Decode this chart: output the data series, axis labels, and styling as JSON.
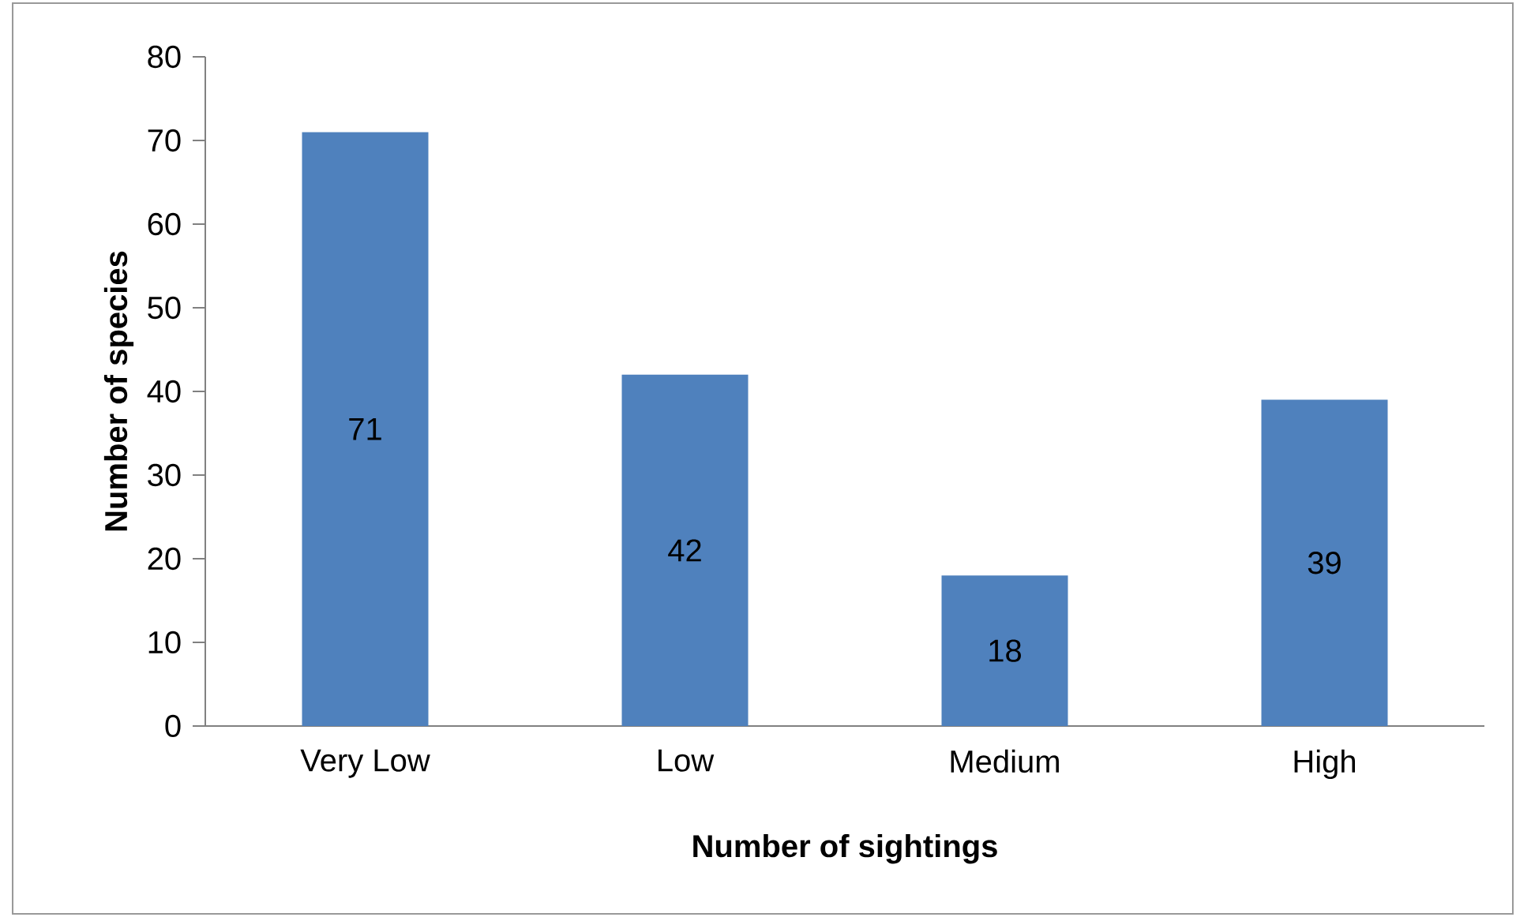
{
  "chart_data": {
    "type": "bar",
    "xlabel": "Number of sightings",
    "ylabel": "Number of species",
    "categories": [
      "Very Low",
      "Low",
      "Medium",
      "High"
    ],
    "values": [
      71,
      42,
      18,
      39
    ],
    "color": "#4f81bd",
    "ylim": [
      0,
      80
    ],
    "yticks": [
      0,
      10,
      20,
      30,
      40,
      50,
      60,
      70,
      80
    ],
    "data_labels": true
  }
}
